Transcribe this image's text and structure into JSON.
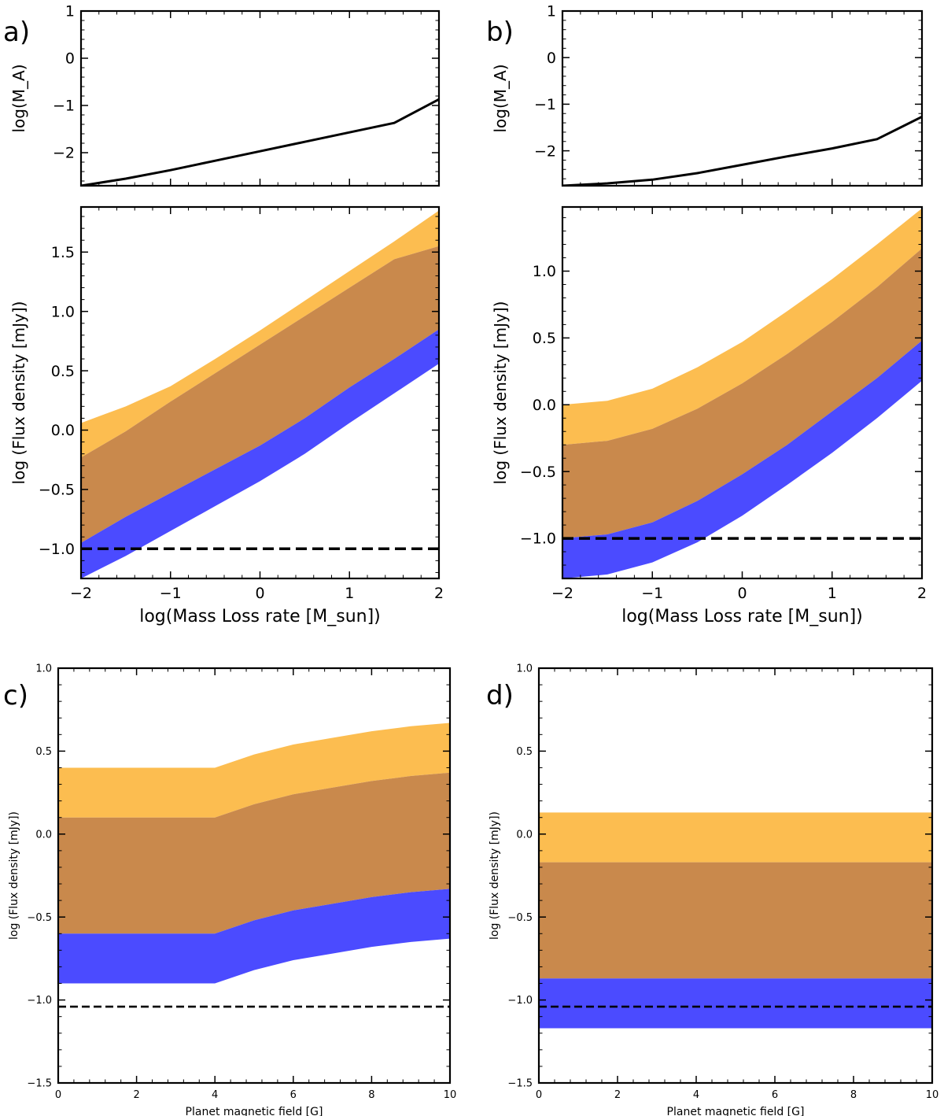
{
  "colors": {
    "orange": "#fcbd50",
    "brown": "#c9894c",
    "blue": "#4b4bff",
    "line": "#000000"
  },
  "chart_data": [
    {
      "panel": "a-top",
      "panel_label": "a)",
      "type": "line",
      "ylabel": "log(M_A)",
      "xlabel": "",
      "xlim": [
        -2,
        2
      ],
      "ylim": [
        -2.7,
        1
      ],
      "yticks": [
        -2,
        -1,
        0,
        1
      ],
      "xticks": [
        -2,
        -1,
        0,
        1,
        2
      ],
      "show_xtick_labels": false,
      "series": [
        {
          "name": "M_A",
          "x": [
            -2,
            -1.5,
            -1,
            -0.5,
            0,
            0.5,
            1,
            1.5,
            2
          ],
          "y": [
            -2.7,
            -2.55,
            -2.37,
            -2.17,
            -1.97,
            -1.77,
            -1.57,
            -1.37,
            -0.87
          ]
        }
      ]
    },
    {
      "panel": "a-bottom",
      "type": "area",
      "xlabel": "log(Mass Loss rate [M_sun])",
      "ylabel": "log (Flux density [mJy])",
      "xlim": [
        -2,
        2
      ],
      "ylim": [
        -1.25,
        1.88
      ],
      "yticks": [
        -1.0,
        -0.5,
        0.0,
        0.5,
        1.0,
        1.5
      ],
      "xticks": [
        -2,
        -1,
        0,
        1,
        2
      ],
      "bands": [
        {
          "name": "orange-band",
          "color_key": "orange",
          "x": [
            -2,
            -1.5,
            -1,
            -0.5,
            0,
            0.5,
            1,
            1.5,
            2
          ],
          "lower": [
            -0.23,
            -0.01,
            0.24,
            0.48,
            0.72,
            0.96,
            1.2,
            1.44,
            1.55
          ],
          "upper": [
            0.06,
            0.2,
            0.37,
            0.6,
            0.84,
            1.09,
            1.34,
            1.59,
            1.85
          ]
        },
        {
          "name": "brown-band",
          "color_key": "brown",
          "x": [
            -2,
            -1.5,
            -1,
            -0.5,
            0,
            0.5,
            1,
            1.5,
            2
          ],
          "lower": [
            -0.95,
            -0.73,
            -0.53,
            -0.33,
            -0.13,
            0.1,
            0.36,
            0.6,
            0.85
          ],
          "upper": [
            -0.23,
            -0.01,
            0.24,
            0.48,
            0.72,
            0.96,
            1.2,
            1.44,
            1.55
          ]
        },
        {
          "name": "blue-band",
          "color_key": "blue",
          "x": [
            -2,
            -1.5,
            -1,
            -0.5,
            0,
            0.5,
            1,
            1.5,
            2
          ],
          "lower": [
            -1.25,
            -1.06,
            -0.85,
            -0.64,
            -0.43,
            -0.2,
            0.06,
            0.31,
            0.56
          ],
          "upper": [
            -0.95,
            -0.73,
            -0.53,
            -0.33,
            -0.13,
            0.1,
            0.36,
            0.6,
            0.85
          ]
        }
      ],
      "hlines": [
        {
          "name": "detection-limit",
          "y": -1.0,
          "style": "dashed"
        }
      ]
    },
    {
      "panel": "b-top",
      "panel_label": "b)",
      "type": "line",
      "ylabel": "log(M_A)",
      "xlabel": "",
      "xlim": [
        -2,
        2
      ],
      "ylim": [
        -2.75,
        1
      ],
      "yticks": [
        -2,
        -1,
        0,
        1
      ],
      "xticks": [
        -2,
        -1,
        0,
        1,
        2
      ],
      "show_xtick_labels": false,
      "series": [
        {
          "name": "M_A",
          "x": [
            -2,
            -1.5,
            -1,
            -0.5,
            0,
            0.5,
            1,
            1.5,
            2
          ],
          "y": [
            -2.75,
            -2.7,
            -2.62,
            -2.48,
            -2.3,
            -2.12,
            -1.95,
            -1.75,
            -1.27
          ]
        }
      ]
    },
    {
      "panel": "b-bottom",
      "type": "area",
      "xlabel": "log(Mass Loss rate [M_sun])",
      "ylabel": "log (Flux density [mJy])",
      "xlim": [
        -2,
        2
      ],
      "ylim": [
        -1.3,
        1.48
      ],
      "yticks": [
        -1.0,
        -0.5,
        0.0,
        0.5,
        1.0
      ],
      "xticks": [
        -2,
        -1,
        0,
        1,
        2
      ],
      "bands": [
        {
          "name": "orange-band",
          "color_key": "orange",
          "x": [
            -2,
            -1.5,
            -1,
            -0.5,
            0,
            0.5,
            1,
            1.5,
            2
          ],
          "lower": [
            -0.3,
            -0.27,
            -0.18,
            -0.03,
            0.16,
            0.38,
            0.62,
            0.88,
            1.17
          ],
          "upper": [
            0.0,
            0.03,
            0.12,
            0.28,
            0.47,
            0.7,
            0.94,
            1.2,
            1.47
          ]
        },
        {
          "name": "brown-band",
          "color_key": "brown",
          "x": [
            -2,
            -1.5,
            -1,
            -0.5,
            0,
            0.5,
            1,
            1.5,
            2
          ],
          "lower": [
            -1.0,
            -0.97,
            -0.88,
            -0.72,
            -0.52,
            -0.3,
            -0.05,
            0.2,
            0.48
          ],
          "upper": [
            -0.3,
            -0.27,
            -0.18,
            -0.03,
            0.16,
            0.38,
            0.62,
            0.88,
            1.17
          ]
        },
        {
          "name": "blue-band",
          "color_key": "blue",
          "x": [
            -2,
            -1.5,
            -1,
            -0.5,
            0,
            0.5,
            1,
            1.5,
            2
          ],
          "lower": [
            -1.3,
            -1.27,
            -1.18,
            -1.03,
            -0.83,
            -0.6,
            -0.36,
            -0.1,
            0.18
          ],
          "upper": [
            -1.0,
            -0.97,
            -0.88,
            -0.72,
            -0.52,
            -0.3,
            -0.05,
            0.2,
            0.48
          ]
        }
      ],
      "hlines": [
        {
          "name": "detection-limit",
          "y": -1.0,
          "style": "dashed"
        }
      ]
    },
    {
      "panel": "c",
      "panel_label": "c)",
      "type": "area",
      "xlabel": "Planet magnetic field [G]",
      "ylabel": "log (Flux density [mJy])",
      "xlim": [
        0,
        10
      ],
      "ylim": [
        -1.5,
        1.0
      ],
      "yticks": [
        -1.5,
        -1.0,
        -0.5,
        0.0,
        0.5,
        1.0
      ],
      "xticks": [
        0,
        2,
        4,
        6,
        8,
        10
      ],
      "bands": [
        {
          "name": "orange-band",
          "color_key": "orange",
          "x": [
            0,
            4,
            5,
            6,
            7,
            8,
            9,
            10
          ],
          "lower": [
            0.1,
            0.1,
            0.18,
            0.24,
            0.28,
            0.32,
            0.35,
            0.37
          ],
          "upper": [
            0.4,
            0.4,
            0.48,
            0.54,
            0.58,
            0.62,
            0.65,
            0.67
          ]
        },
        {
          "name": "brown-band",
          "color_key": "brown",
          "x": [
            0,
            4,
            5,
            6,
            7,
            8,
            9,
            10
          ],
          "lower": [
            -0.6,
            -0.6,
            -0.52,
            -0.46,
            -0.42,
            -0.38,
            -0.35,
            -0.33
          ],
          "upper": [
            0.1,
            0.1,
            0.18,
            0.24,
            0.28,
            0.32,
            0.35,
            0.37
          ]
        },
        {
          "name": "blue-band",
          "color_key": "blue",
          "x": [
            0,
            4,
            5,
            6,
            7,
            8,
            9,
            10
          ],
          "lower": [
            -0.9,
            -0.9,
            -0.82,
            -0.76,
            -0.72,
            -0.68,
            -0.65,
            -0.63
          ],
          "upper": [
            -0.6,
            -0.6,
            -0.52,
            -0.46,
            -0.42,
            -0.38,
            -0.35,
            -0.33
          ]
        }
      ],
      "hlines": [
        {
          "name": "detection-limit",
          "y": -1.04,
          "style": "dashed"
        }
      ]
    },
    {
      "panel": "d",
      "panel_label": "d)",
      "type": "area",
      "xlabel": "Planet magnetic field [G]",
      "ylabel": "log (Flux density [mJy])",
      "xlim": [
        0,
        10
      ],
      "ylim": [
        -1.5,
        1.0
      ],
      "yticks": [
        -1.5,
        -1.0,
        -0.5,
        0.0,
        0.5,
        1.0
      ],
      "xticks": [
        0,
        2,
        4,
        6,
        8,
        10
      ],
      "bands": [
        {
          "name": "orange-band",
          "color_key": "orange",
          "x": [
            0,
            10
          ],
          "lower": [
            -0.17,
            -0.17
          ],
          "upper": [
            0.13,
            0.13
          ]
        },
        {
          "name": "brown-band",
          "color_key": "brown",
          "x": [
            0,
            10
          ],
          "lower": [
            -0.87,
            -0.87
          ],
          "upper": [
            -0.17,
            -0.17
          ]
        },
        {
          "name": "blue-band",
          "color_key": "blue",
          "x": [
            0,
            10
          ],
          "lower": [
            -1.17,
            -1.17
          ],
          "upper": [
            -0.87,
            -0.87
          ]
        }
      ],
      "hlines": [
        {
          "name": "detection-limit",
          "y": -1.04,
          "style": "dashed"
        }
      ]
    }
  ]
}
